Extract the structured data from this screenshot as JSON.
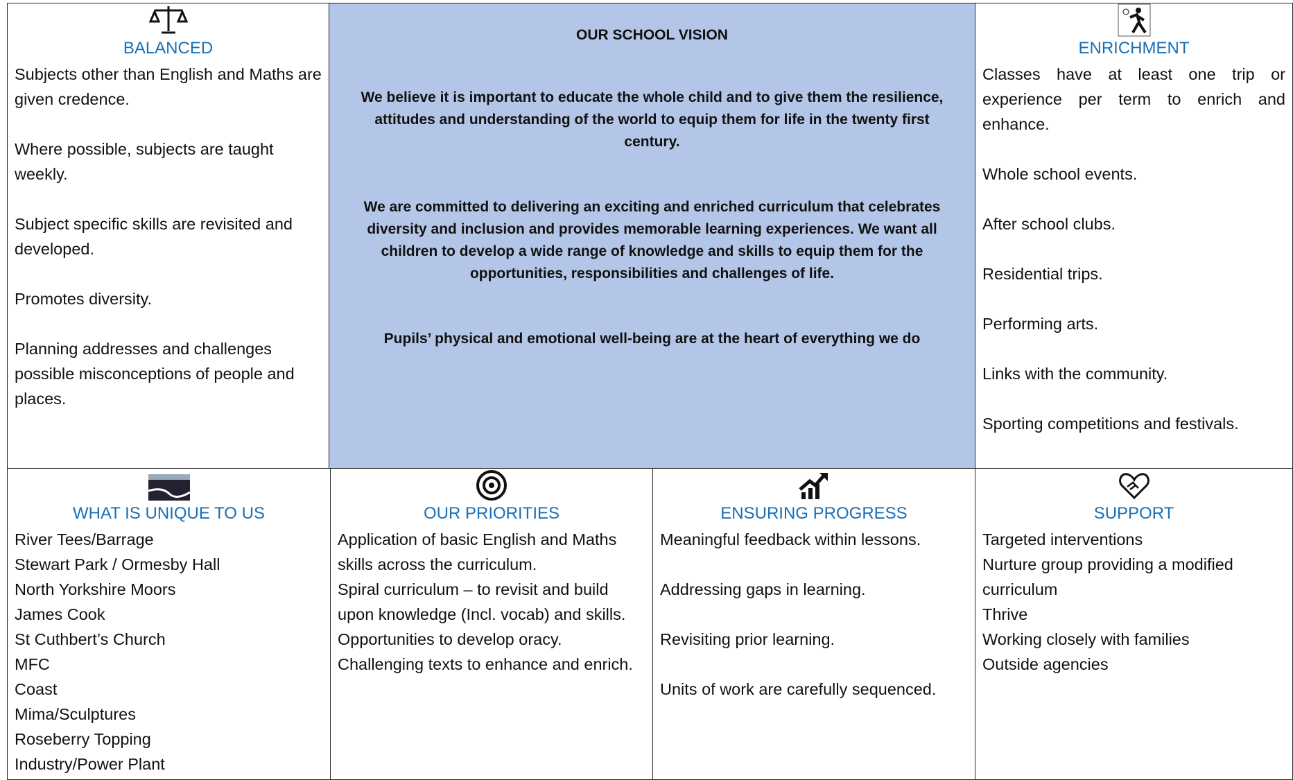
{
  "balanced": {
    "title": "BALANCED",
    "items": [
      "Subjects other than English and Maths are given credence.",
      "Where possible, subjects are taught weekly.",
      "Subject specific skills are revisited and developed.",
      "Promotes  diversity.",
      "Planning addresses and challenges possible misconceptions of people and places."
    ]
  },
  "vision": {
    "title": "OUR SCHOOL VISION",
    "paragraphs": [
      "We believe it is important to educate the whole child and to give them the resilience, attitudes and understanding of the world to equip them for life in the twenty first century.",
      "We are committed to delivering an exciting and enriched curriculum that celebrates diversity and inclusion and provides memorable learning experiences. We want all children to develop a wide range of knowledge and skills to equip them for the opportunities, responsibilities and challenges of life.",
      "Pupils’ physical and emotional well-being are at the heart of everything we do"
    ]
  },
  "enrichment": {
    "title": "ENRICHMENT",
    "items": [
      "Classes have at least one trip or experience per term to enrich and enhance.",
      "Whole school events.",
      "After school clubs.",
      "Residential trips.",
      "Performing arts.",
      "Links with the community.",
      "Sporting competitions and festivals."
    ]
  },
  "unique": {
    "title": "WHAT IS UNIQUE TO US",
    "items": [
      "River Tees/Barrage",
      "Stewart Park / Ormesby Hall",
      "North Yorkshire Moors",
      "James Cook",
      "St Cuthbert’s Church",
      "MFC",
      "Coast",
      "Mima/Sculptures",
      "Roseberry Topping",
      "Industry/Power Plant"
    ]
  },
  "priorities": {
    "title": "OUR PRIORITIES",
    "items": [
      "Application of basic English and Maths skills across the curriculum.",
      "Spiral curriculum – to revisit and build upon knowledge (Incl. vocab) and skills.",
      "Opportunities to develop oracy.",
      "Challenging texts to enhance and enrich."
    ]
  },
  "progress": {
    "title": "ENSURING PROGRESS",
    "items": [
      "Meaningful feedback within lessons.",
      "Addressing gaps in learning.",
      "Revisiting prior learning.",
      "Units of work are carefully sequenced."
    ]
  },
  "support": {
    "title": "SUPPORT",
    "items": [
      "Targeted interventions",
      "Nurture group providing a modified curriculum",
      "Thrive",
      "Working closely with families",
      "Outside agencies"
    ]
  }
}
